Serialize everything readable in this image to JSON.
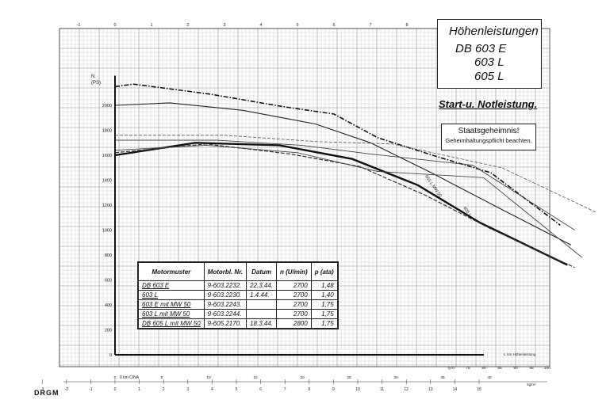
{
  "stamp": "DRGM",
  "title_block": {
    "line1": "Höhenleistungen",
    "line2": "DB 603 E",
    "line3": "603 L",
    "line4": "605 L"
  },
  "subtitle": "Start-u. Notleistung.",
  "secret": {
    "line1": "Staatsgeheimnis!",
    "line2": "Geheimhaltungspflicht beachten."
  },
  "legend_table": {
    "headers": [
      "Motormuster",
      "Motorbl. Nr.",
      "Datum",
      "n (U/min)",
      "p (ata)"
    ],
    "rows": [
      [
        "DB 603 E",
        "9-603.2232.",
        "22.3.44.",
        "2700",
        "1,48"
      ],
      [
        "603 L",
        "9-603.2230.",
        "1.4.44.",
        "2700",
        "1,40"
      ],
      [
        "603 E mit MW 50",
        "9-603.2243.",
        "",
        "2700",
        "1,75"
      ],
      [
        "603 L mit MW 50",
        "9-603.2244.",
        "",
        "2700",
        "1,75"
      ],
      [
        "DB 605 L mit MW 50",
        "9-605.2170.",
        "18.3.44.",
        "2800",
        "1,75"
      ]
    ]
  },
  "annotations": {
    "line_note_1": "603 L MW 50",
    "line_note_2": "605 L",
    "bottom_note": "s. km   Höhenleistung"
  },
  "chart_data": {
    "type": "line",
    "title": "Höhenleistungen",
    "ylabel": "N (PS)",
    "xlabel": "",
    "xlim": [
      0,
      13
    ],
    "ylim": [
      0,
      2200
    ],
    "y_ticks": [
      "200",
      "400",
      "600",
      "800",
      "1000",
      "1200",
      "1400",
      "1600",
      "1800",
      "2000"
    ],
    "top_ticks": [
      "-1",
      "0",
      "1",
      "2",
      "3",
      "4",
      "5",
      "6",
      "7",
      "8",
      "9",
      "10",
      "11"
    ],
    "bottom_ticks": [
      "-3",
      "-2",
      "-1",
      "0",
      "1",
      "2",
      "3",
      "4",
      "5",
      "6",
      "7",
      "8",
      "9",
      "10",
      "11",
      "12",
      "13",
      "14",
      "15"
    ],
    "bottom_scale_label": "0  km CINA",
    "scale2_ticks": [
      "0",
      "5",
      "10",
      "15",
      "20",
      "25",
      "30",
      "35",
      "40"
    ],
    "scale2_label": "kg/m²",
    "scale3_ticks": [
      "70",
      "75",
      "80",
      "85",
      "90",
      "95",
      "100"
    ],
    "scale3_label": "η",
    "series": [
      {
        "values": [
          [
            0,
            1600
          ],
          [
            2.2,
            1700
          ],
          [
            4.5,
            1680
          ],
          [
            6.5,
            1570
          ],
          [
            8.3,
            1360
          ],
          [
            10,
            1060
          ],
          [
            12.4,
            720
          ]
        ]
      },
      {
        "values": [
          [
            0,
            1620
          ],
          [
            2.5,
            1690
          ],
          [
            4.8,
            1610
          ],
          [
            6.7,
            1510
          ],
          [
            8.5,
            1280
          ],
          [
            10.3,
            1010
          ],
          [
            12.6,
            700
          ]
        ]
      },
      {
        "values": [
          [
            0,
            2000
          ],
          [
            1.5,
            2020
          ],
          [
            3.5,
            1960
          ],
          [
            5.5,
            1850
          ],
          [
            7,
            1700
          ],
          [
            8.6,
            1470
          ],
          [
            10.5,
            1180
          ],
          [
            12.5,
            880
          ]
        ]
      },
      {
        "values": [
          [
            0,
            2150
          ],
          [
            0.5,
            2170
          ],
          [
            2.6,
            2090
          ],
          [
            4.6,
            1990
          ],
          [
            6,
            1930
          ],
          [
            7.2,
            1740
          ],
          [
            8.7,
            1600
          ],
          [
            10.3,
            1460
          ],
          [
            12.2,
            1040
          ]
        ]
      },
      {
        "values": [
          [
            0,
            1720
          ],
          [
            2.8,
            1720
          ],
          [
            5.1,
            1680
          ],
          [
            7,
            1610
          ],
          [
            9.8,
            1520
          ],
          [
            12.6,
            1000
          ]
        ]
      },
      {
        "values": [
          [
            0,
            1640
          ],
          [
            2.5,
            1680
          ],
          [
            5,
            1620
          ],
          [
            7.2,
            1470
          ],
          [
            10.1,
            1420
          ],
          [
            12.8,
            780
          ]
        ]
      },
      {
        "values": [
          [
            0,
            1760
          ],
          [
            3,
            1760
          ],
          [
            5.5,
            1710
          ],
          [
            7.6,
            1690
          ],
          [
            10.6,
            1500
          ],
          [
            13.2,
            1140
          ]
        ]
      }
    ]
  }
}
